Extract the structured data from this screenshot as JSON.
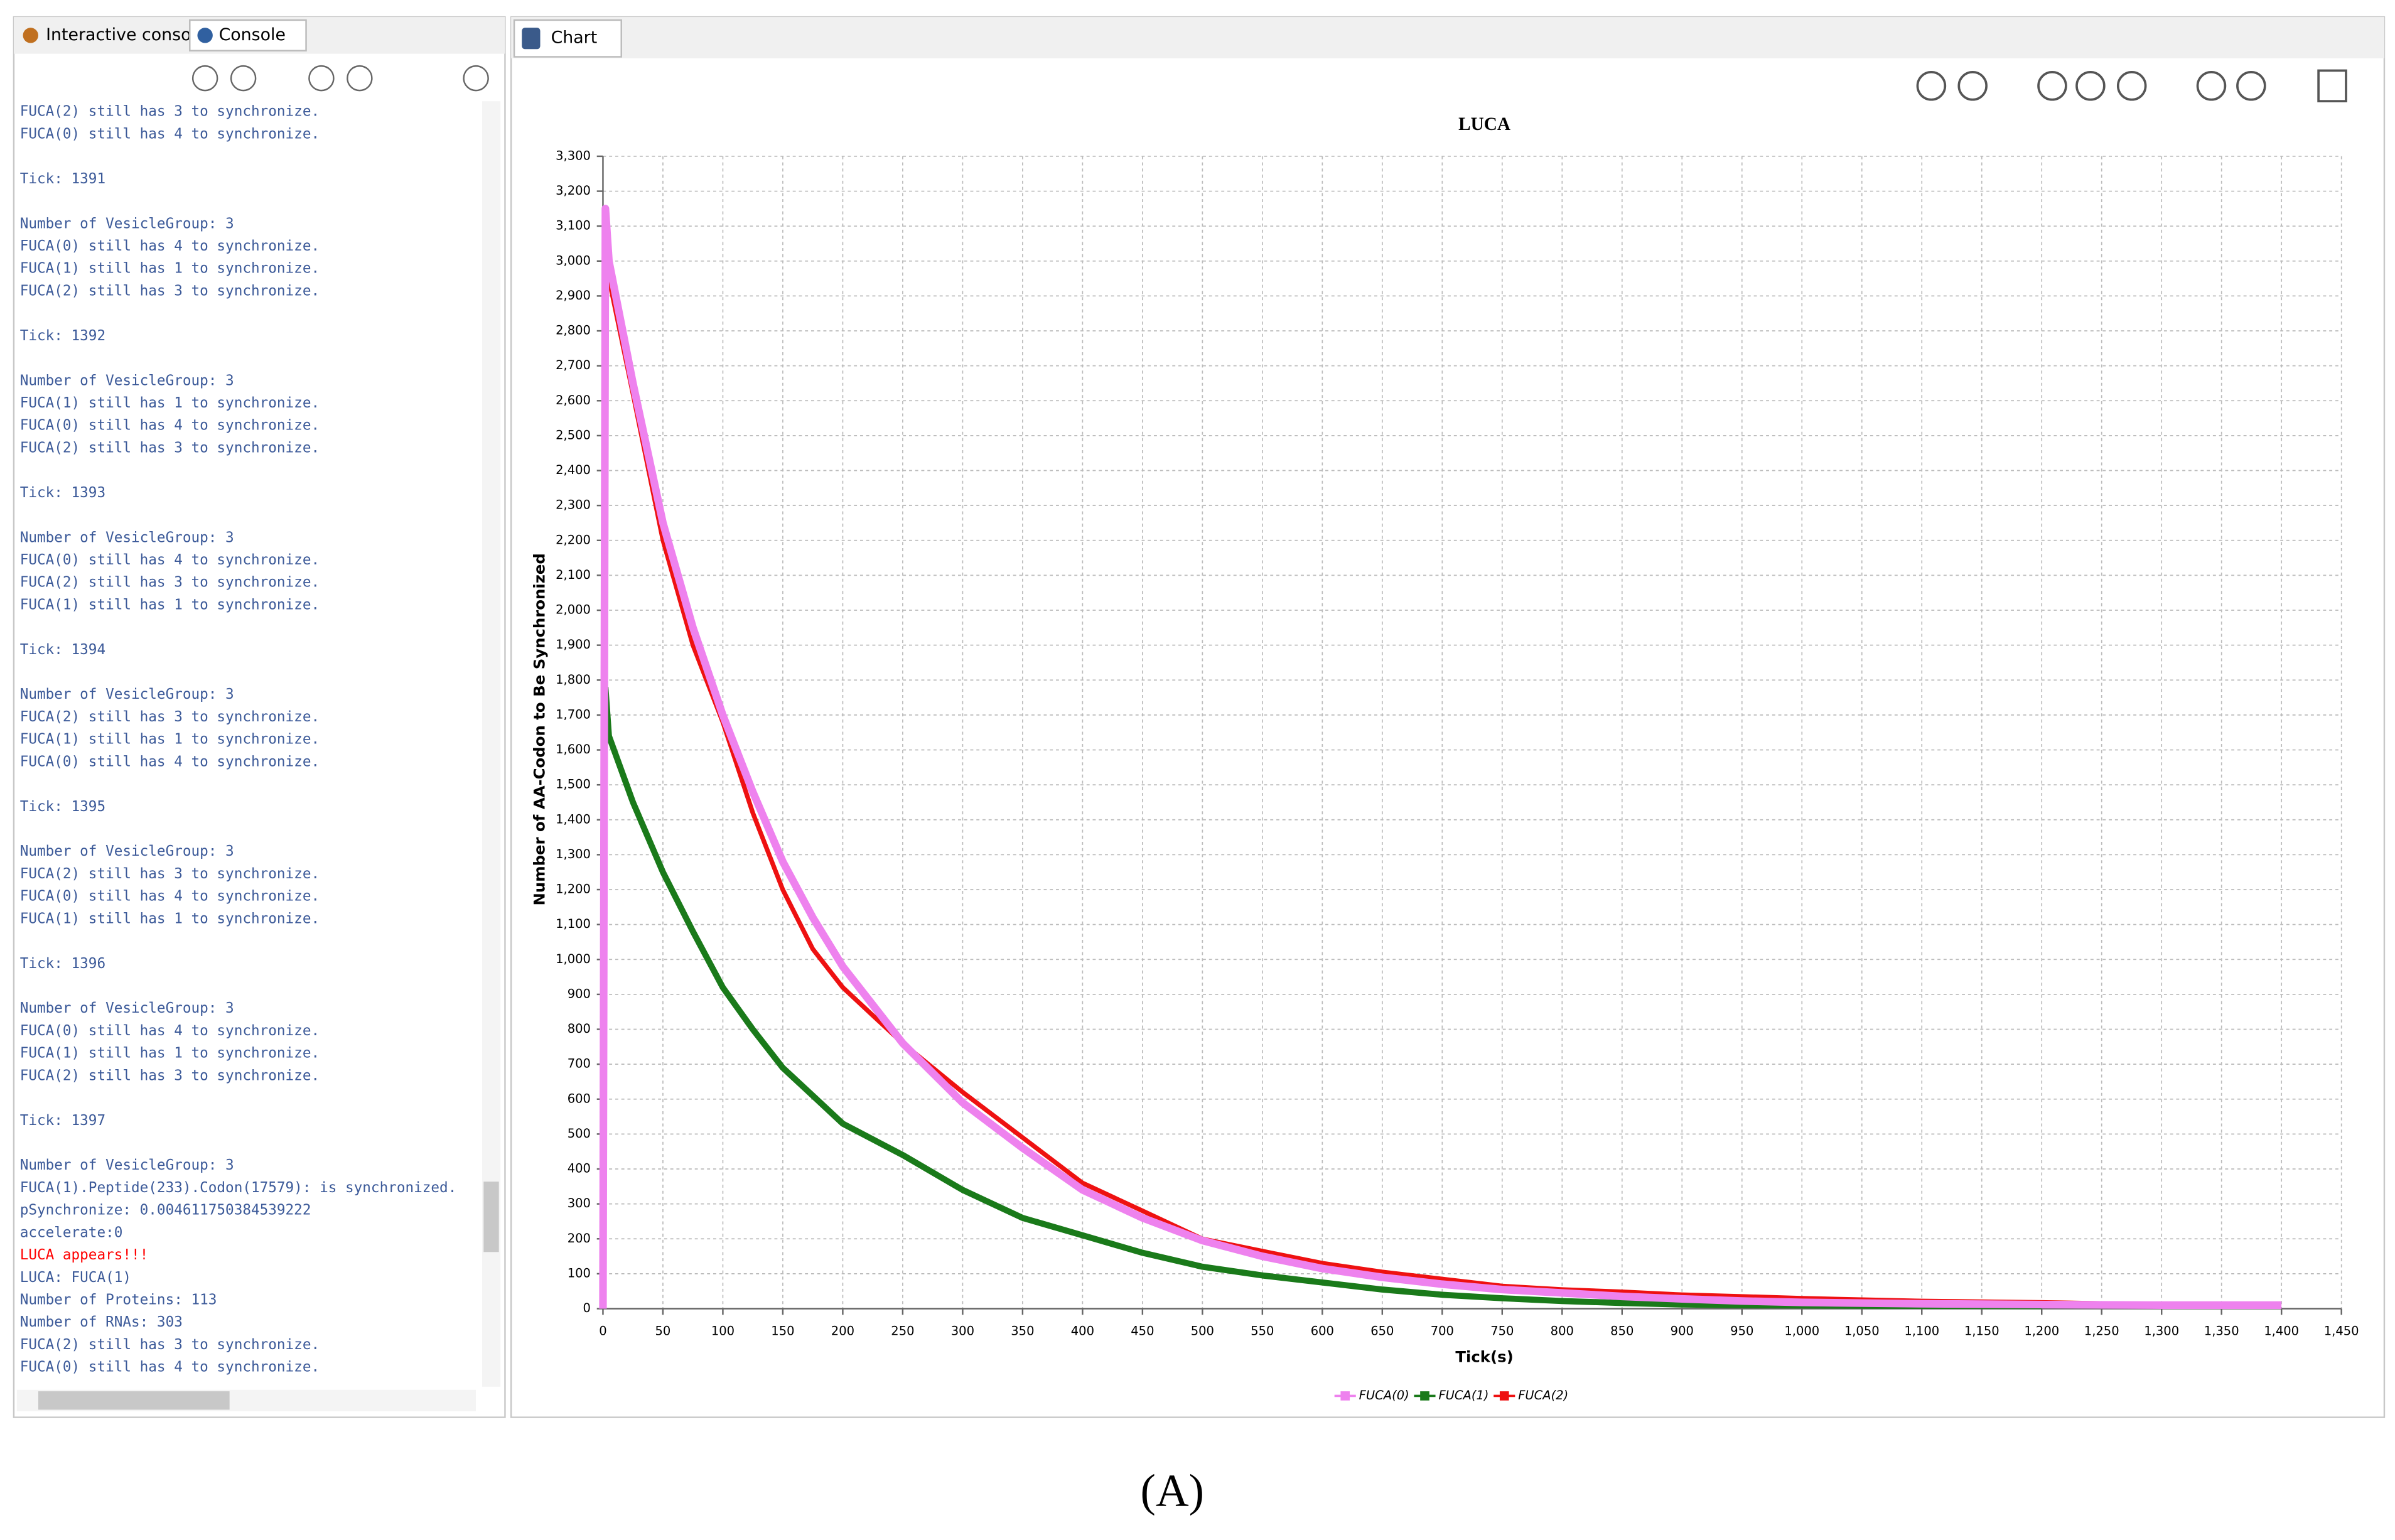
{
  "tabs": {
    "left": [
      "Interactive console",
      "Console"
    ],
    "right": [
      "Chart"
    ]
  },
  "console": {
    "color": "#3c5a99",
    "highlight": {
      "block": 14,
      "line": 4,
      "color": "#ff0000"
    },
    "blocks": [
      [
        "FUCA(2) still has 3 to synchronize.",
        "FUCA(0) still has 4 to synchronize."
      ],
      [
        "Tick: 1391"
      ],
      [
        "Number of VesicleGroup: 3",
        "FUCA(0) still has 4 to synchronize.",
        "FUCA(1) still has 1 to synchronize.",
        "FUCA(2) still has 3 to synchronize."
      ],
      [
        "Tick: 1392"
      ],
      [
        "Number of VesicleGroup: 3",
        "FUCA(1) still has 1 to synchronize.",
        "FUCA(0) still has 4 to synchronize.",
        "FUCA(2) still has 3 to synchronize."
      ],
      [
        "Tick: 1393"
      ],
      [
        "Number of VesicleGroup: 3",
        "FUCA(0) still has 4 to synchronize.",
        "FUCA(2) still has 3 to synchronize.",
        "FUCA(1) still has 1 to synchronize."
      ],
      [
        "Tick: 1394"
      ],
      [
        "Number of VesicleGroup: 3",
        "FUCA(2) still has 3 to synchronize.",
        "FUCA(1) still has 1 to synchronize.",
        "FUCA(0) still has 4 to synchronize."
      ],
      [
        "Tick: 1395"
      ],
      [
        "Number of VesicleGroup: 3",
        "FUCA(2) still has 3 to synchronize.",
        "FUCA(0) still has 4 to synchronize.",
        "FUCA(1) still has 1 to synchronize."
      ],
      [
        "Tick: 1396"
      ],
      [
        "Number of VesicleGroup: 3",
        "FUCA(0) still has 4 to synchronize.",
        "FUCA(1) still has 1 to synchronize.",
        "FUCA(2) still has 3 to synchronize."
      ],
      [
        "Tick: 1397"
      ],
      [
        "Number of VesicleGroup: 3",
        "FUCA(1).Peptide(233).Codon(17579): is synchronized.",
        "pSynchronize: 0.004611750384539222",
        "accelerate:0",
        "LUCA appears!!!",
        "LUCA: FUCA(1)",
        "Number of Proteins: 113",
        "Number of RNAs: 303",
        "FUCA(2) still has 3 to synchronize.",
        "FUCA(0) still has 4 to synchronize."
      ]
    ]
  },
  "caption": "(A)",
  "chart_data": {
    "type": "line",
    "title": "LUCA",
    "x_label": "Tick(s)",
    "y_label": "Number of AA-Codon to Be Synchronized",
    "grid": true,
    "legend": "bottom",
    "xlim": [
      0,
      1450
    ],
    "ylim": [
      0,
      3300
    ],
    "xticks": [
      0,
      50,
      100,
      150,
      200,
      250,
      300,
      350,
      400,
      450,
      500,
      550,
      600,
      650,
      700,
      750,
      800,
      850,
      900,
      950,
      {
        "value": 1000,
        "label": "1,000"
      },
      {
        "value": 1050,
        "label": "1,050"
      },
      {
        "value": 1100,
        "label": "1,100"
      },
      {
        "value": 1150,
        "label": "1,150"
      },
      {
        "value": 1200,
        "label": "1,200"
      },
      {
        "value": 1250,
        "label": "1,250"
      },
      {
        "value": 1300,
        "label": "1,300"
      },
      {
        "value": 1350,
        "label": "1,350"
      },
      {
        "value": 1400,
        "label": "1,400"
      },
      {
        "value": 1450,
        "label": "1,450"
      }
    ],
    "yticks": [
      0,
      100,
      200,
      300,
      400,
      500,
      600,
      700,
      800,
      900,
      {
        "value": 1000,
        "label": "1,000"
      },
      {
        "value": 1100,
        "label": "1,100"
      },
      {
        "value": 1200,
        "label": "1,200"
      },
      {
        "value": 1300,
        "label": "1,300"
      },
      {
        "value": 1400,
        "label": "1,400"
      },
      {
        "value": 1500,
        "label": "1,500"
      },
      {
        "value": 1600,
        "label": "1,600"
      },
      {
        "value": 1700,
        "label": "1,700"
      },
      {
        "value": 1800,
        "label": "1,800"
      },
      {
        "value": 1900,
        "label": "1,900"
      },
      {
        "value": 2000,
        "label": "2,000"
      },
      {
        "value": 2100,
        "label": "2,100"
      },
      {
        "value": 2200,
        "label": "2,200"
      },
      {
        "value": 2300,
        "label": "2,300"
      },
      {
        "value": 2400,
        "label": "2,400"
      },
      {
        "value": 2500,
        "label": "2,500"
      },
      {
        "value": 2600,
        "label": "2,600"
      },
      {
        "value": 2700,
        "label": "2,700"
      },
      {
        "value": 2800,
        "label": "2,800"
      },
      {
        "value": 2900,
        "label": "2,900"
      },
      {
        "value": 3000,
        "label": "3,000"
      },
      {
        "value": 3100,
        "label": "3,100"
      },
      {
        "value": 3200,
        "label": "3,200"
      },
      {
        "value": 3300,
        "label": "3,300"
      }
    ],
    "x": [
      0,
      2,
      5,
      25,
      50,
      75,
      100,
      125,
      150,
      175,
      200,
      250,
      300,
      350,
      400,
      450,
      500,
      550,
      600,
      650,
      700,
      750,
      800,
      850,
      900,
      950,
      1000,
      1100,
      1200,
      1300,
      1400
    ],
    "series": [
      {
        "name": "FUCA(0)",
        "color": "#ee82ee",
        "width": 5,
        "values": [
          0,
          3150,
          3000,
          2650,
          2250,
          1950,
          1700,
          1480,
          1280,
          1120,
          980,
          760,
          590,
          460,
          340,
          260,
          195,
          150,
          115,
          90,
          70,
          55,
          45,
          35,
          28,
          22,
          18,
          14,
          12,
          10,
          10
        ]
      },
      {
        "name": "FUCA(1)",
        "color": "#1a7a1a",
        "width": 4,
        "values": [
          null,
          1780,
          1640,
          1450,
          1250,
          1080,
          920,
          800,
          690,
          610,
          530,
          440,
          340,
          260,
          210,
          160,
          120,
          95,
          75,
          55,
          40,
          30,
          22,
          16,
          12,
          10,
          9,
          8,
          7,
          null,
          null
        ]
      },
      {
        "name": "FUCA(2)",
        "color": "#ee1111",
        "width": 3,
        "values": [
          null,
          3100,
          2950,
          2620,
          2200,
          1900,
          1680,
          1420,
          1200,
          1030,
          920,
          760,
          620,
          490,
          360,
          280,
          200,
          165,
          130,
          105,
          85,
          65,
          55,
          48,
          40,
          35,
          30,
          22,
          18,
          12,
          null
        ]
      }
    ]
  }
}
